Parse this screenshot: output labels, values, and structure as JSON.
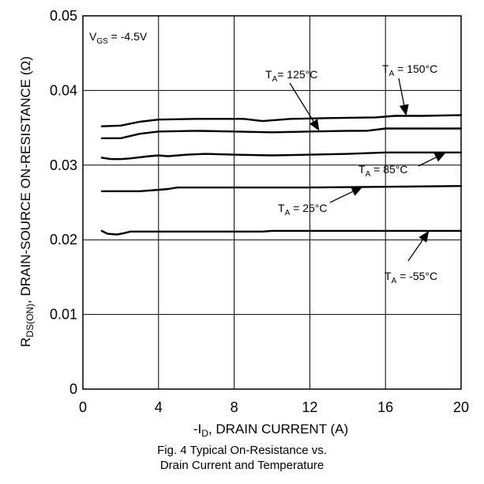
{
  "chart_data": {
    "type": "line",
    "title": "",
    "xlabel": "-I",
    "xlabel_sub": "D",
    "xlabel_rest": ", DRAIN CURRENT (A)",
    "ylabel": "R",
    "ylabel_sub": "DS(ON)",
    "ylabel_rest": ", DRAIN-SOURCE ON-RESISTANCE (Ω)",
    "xlim": [
      0,
      20
    ],
    "ylim": [
      0,
      0.05
    ],
    "xticks": [
      "0",
      "4",
      "8",
      "12",
      "16",
      "20"
    ],
    "yticks": [
      "0",
      "0.01",
      "0.02",
      "0.03",
      "0.04",
      "0.05"
    ],
    "grid": true,
    "series": [
      {
        "name": "T_A = 150°C",
        "x": [
          1.0,
          2.0,
          3.0,
          4.0,
          6.0,
          8.5,
          9.5,
          11.0,
          13.0,
          15.5,
          16.5,
          18.0,
          20.0
        ],
        "y": [
          0.0352,
          0.0353,
          0.0358,
          0.0361,
          0.0362,
          0.0362,
          0.0359,
          0.0362,
          0.0363,
          0.0364,
          0.0366,
          0.0366,
          0.0367
        ]
      },
      {
        "name": "T_A = 125°C",
        "x": [
          1.0,
          2.0,
          3.0,
          4.0,
          6.0,
          8.0,
          10.0,
          12.0,
          14.0,
          15.0,
          16.0,
          18.0,
          20.0
        ],
        "y": [
          0.0336,
          0.0336,
          0.0342,
          0.0345,
          0.0346,
          0.0345,
          0.0344,
          0.0345,
          0.0346,
          0.0346,
          0.0349,
          0.0349,
          0.0349
        ]
      },
      {
        "name": "T_A = 85°C",
        "x": [
          1.0,
          1.5,
          2.0,
          2.5,
          3.5,
          4.0,
          4.5,
          5.5,
          6.5,
          8.0,
          10.0,
          12.0,
          14.0,
          16.0,
          18.0,
          20.0
        ],
        "y": [
          0.031,
          0.0308,
          0.0308,
          0.0309,
          0.0312,
          0.0313,
          0.0312,
          0.0314,
          0.0315,
          0.0314,
          0.0313,
          0.0314,
          0.0315,
          0.0317,
          0.0317,
          0.0317
        ]
      },
      {
        "name": "T_A = 25°C",
        "x": [
          1.0,
          3.0,
          4.0,
          4.5,
          5.0,
          8.0,
          12.0,
          16.0,
          20.0
        ],
        "y": [
          0.0265,
          0.0265,
          0.0267,
          0.0268,
          0.027,
          0.027,
          0.027,
          0.0271,
          0.0272
        ]
      },
      {
        "name": "T_A = -55°C",
        "x": [
          1.0,
          1.3,
          1.8,
          2.2,
          2.5,
          4.0,
          8.0,
          9.5,
          10.0,
          12.0,
          16.0,
          20.0
        ],
        "y": [
          0.0212,
          0.0208,
          0.0207,
          0.0209,
          0.0211,
          0.0211,
          0.0211,
          0.0211,
          0.0212,
          0.0212,
          0.0212,
          0.0212
        ]
      }
    ],
    "annotations": [
      {
        "main": "V",
        "sub": "GS",
        "rest": " = -4.5V"
      },
      {
        "main": "T",
        "sub": "A",
        "rest": "= 125°C"
      },
      {
        "main": "T",
        "sub": "A",
        "rest": " = 150°C"
      },
      {
        "main": "T",
        "sub": "A",
        "rest": " = 85°C"
      },
      {
        "main": "T",
        "sub": "A",
        "rest": " = 25°C"
      },
      {
        "main": "T",
        "sub": "A",
        "rest": " = -55°C"
      }
    ]
  },
  "caption": {
    "line1": "Fig. 4 Typical On-Resistance vs.",
    "line2": "Drain Current and Temperature"
  }
}
